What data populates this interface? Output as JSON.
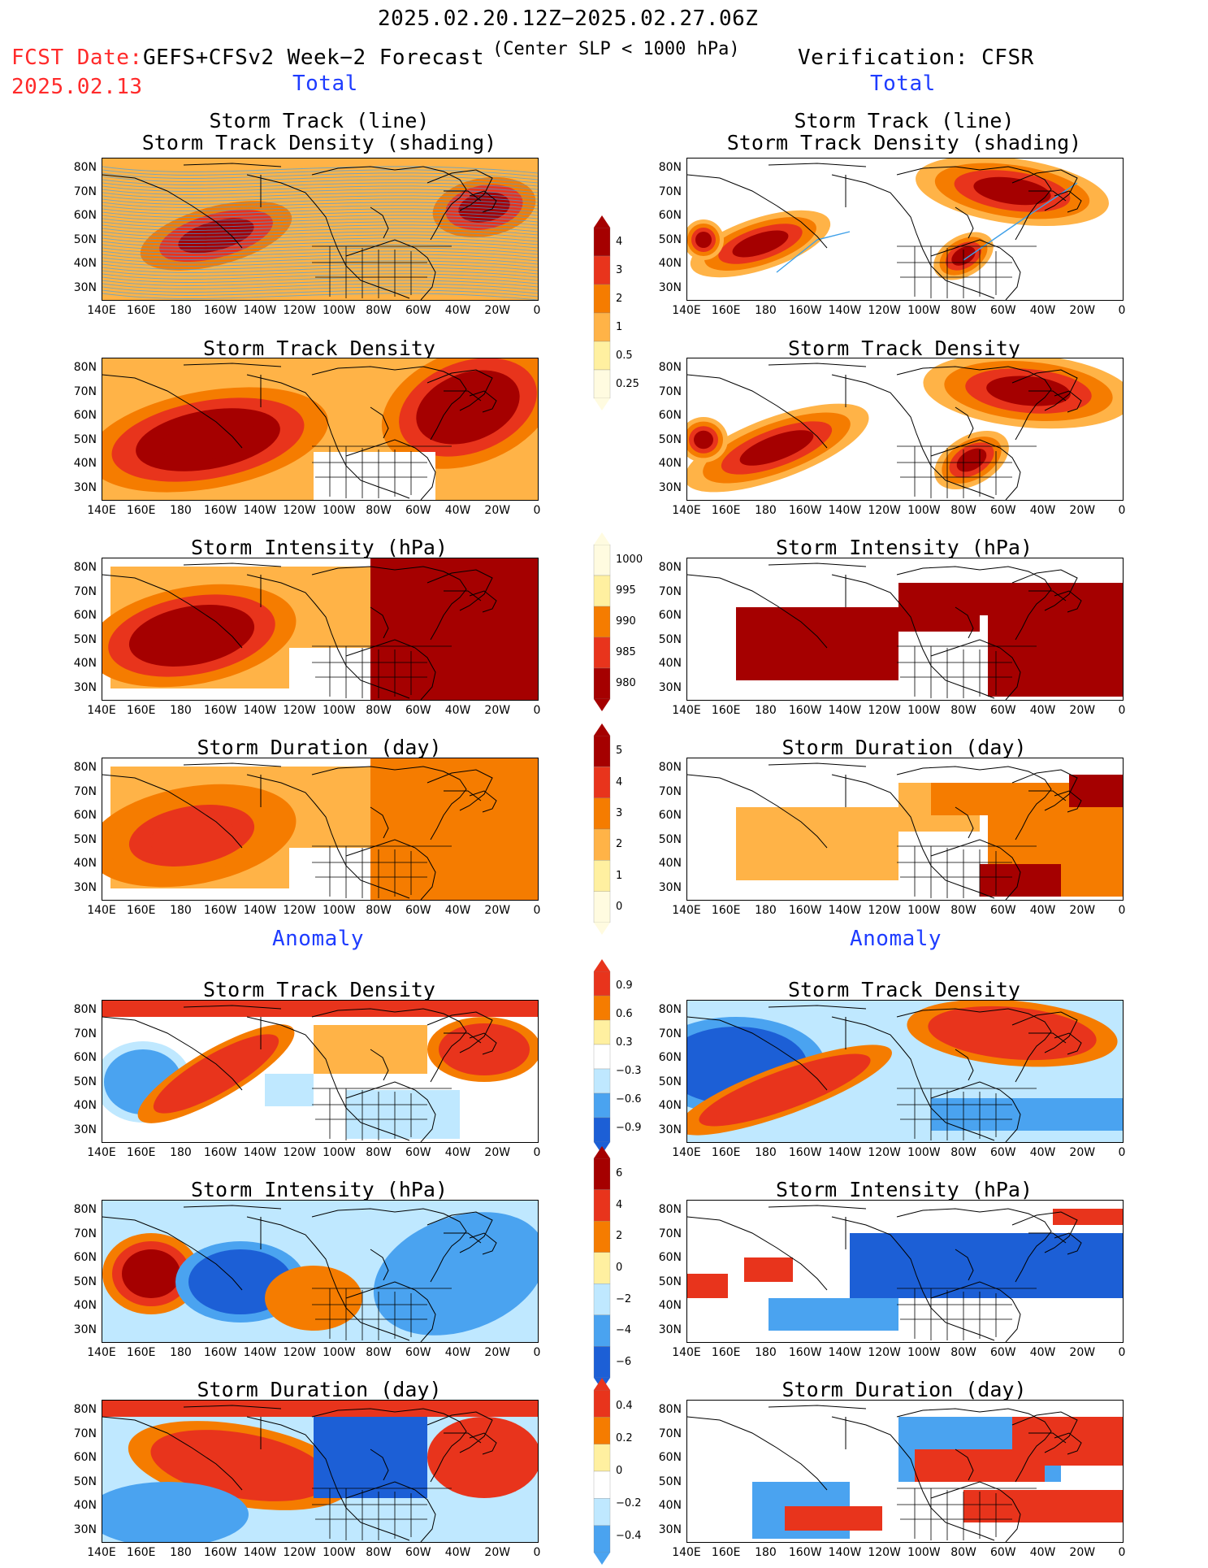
{
  "header": {
    "date_range": "2025.02.20.12Z−2025.02.27.06Z",
    "fcst_label": "FCST Date:",
    "fcst_date": "2025.02.13",
    "forecast_desc": "GEFS+CFSv2 Week−2 Forecast",
    "slp_note": "(Center SLP < 1000 hPa)",
    "verification": "Verification: CFSR"
  },
  "sections": {
    "total": "Total",
    "anomaly": "Anomaly"
  },
  "titles": {
    "track_line": "Storm Track (line)",
    "track_shading": "Storm Track Density (shading)",
    "density": "Storm Track Density",
    "intensity": "Storm Intensity (hPa)",
    "duration": "Storm Duration (day)"
  },
  "axes": {
    "lat_labels": [
      "80N",
      "70N",
      "60N",
      "50N",
      "40N",
      "30N"
    ],
    "lon_labels": [
      "140E",
      "160E",
      "180",
      "160W",
      "140W",
      "120W",
      "100W",
      "80W",
      "60W",
      "40W",
      "20W",
      "0"
    ]
  },
  "colorbars": {
    "total_density": [
      "4",
      "3",
      "2",
      "1",
      "0.5",
      "0.25"
    ],
    "total_intensity": [
      "1000",
      "995",
      "990",
      "985",
      "980"
    ],
    "total_duration": [
      "5",
      "4",
      "3",
      "2",
      "1",
      "0"
    ],
    "anom_density": [
      "0.9",
      "0.6",
      "0.3",
      "−0.3",
      "−0.6",
      "−0.9"
    ],
    "anom_intensity": [
      "6",
      "4",
      "2",
      "0",
      "−2",
      "−4",
      "−6"
    ],
    "anom_duration": [
      "0.4",
      "0.2",
      "0",
      "−0.2",
      "−0.4"
    ]
  },
  "colors": {
    "dark_red": "#a50000",
    "red": "#e8341c",
    "orange": "#f57c00",
    "light_orange": "#ffb347",
    "yellow": "#fff0a0",
    "light_blue": "#bfe8ff",
    "blue": "#4aa3f0",
    "dark_blue": "#1c5fd6",
    "track": "#3fa0e8"
  }
}
